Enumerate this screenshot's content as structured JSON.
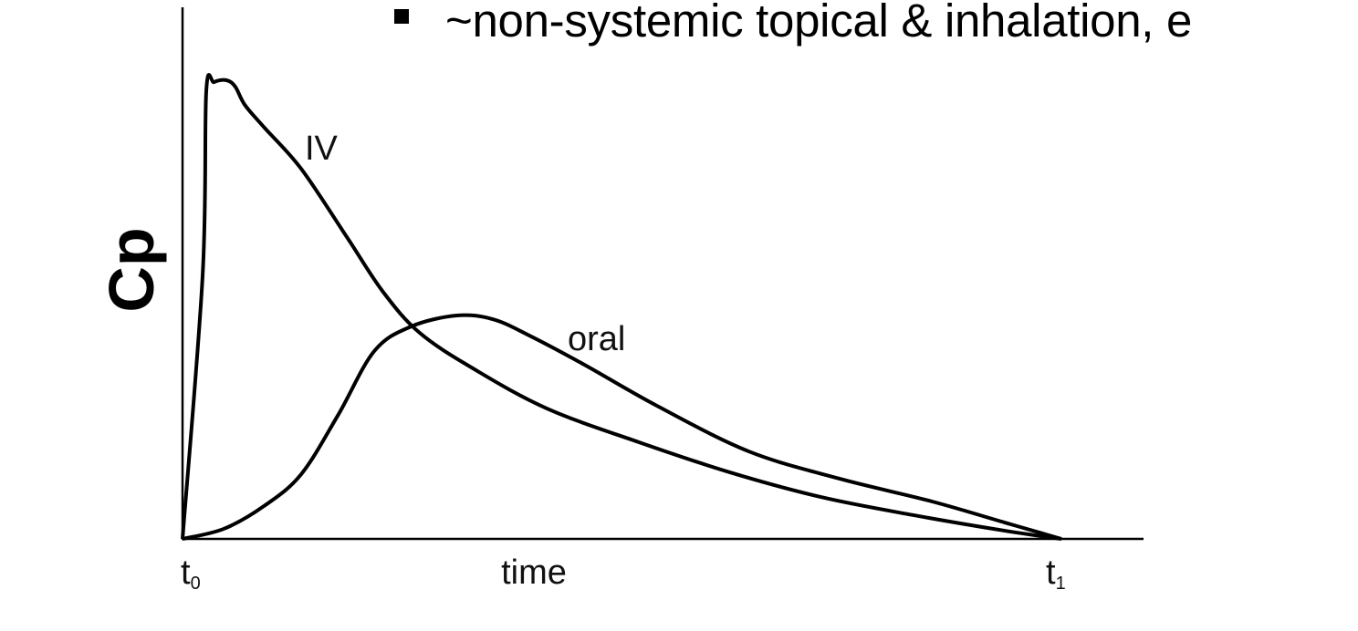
{
  "slide_text": {
    "bullet": "~non-systemic topical & inhalation, e"
  },
  "chart_data": {
    "type": "line",
    "title": "",
    "xlabel": "time",
    "ylabel": "Cp",
    "x_tick_labels": [
      "t0",
      "t1"
    ],
    "xlim": [
      0,
      1
    ],
    "ylim": [
      0,
      1.16
    ],
    "grid": false,
    "legend": "none (inline curve labels)",
    "line_color": "#000000",
    "series": [
      {
        "name": "IV",
        "x": [
          0,
          0.023,
          0.027,
          0.036,
          0.05,
          0.06,
          0.071,
          0.093,
          0.135,
          0.187,
          0.228,
          0.27,
          0.332,
          0.415,
          0.519,
          0.623,
          0.727,
          0.831,
          0.935,
          1
        ],
        "y": [
          0,
          0.579,
          0.976,
          0.996,
          1.0,
          0.986,
          0.946,
          0.897,
          0.807,
          0.658,
          0.539,
          0.449,
          0.37,
          0.284,
          0.211,
          0.145,
          0.091,
          0.052,
          0.018,
          0
        ]
      },
      {
        "name": "oral",
        "x": [
          0,
          0.047,
          0.093,
          0.135,
          0.177,
          0.218,
          0.26,
          0.312,
          0.353,
          0.395,
          0.457,
          0.54,
          0.644,
          0.748,
          0.852,
          0.935,
          1
        ],
        "y": [
          0,
          0.022,
          0.072,
          0.141,
          0.27,
          0.409,
          0.463,
          0.487,
          0.479,
          0.443,
          0.38,
          0.29,
          0.191,
          0.131,
          0.082,
          0.036,
          0
        ]
      }
    ]
  }
}
